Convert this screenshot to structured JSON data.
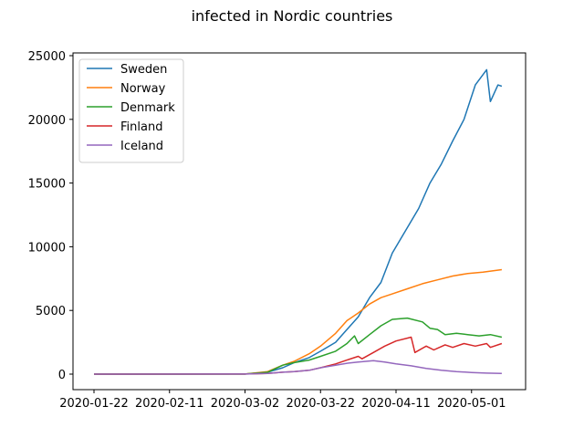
{
  "chart_data": {
    "type": "line",
    "title": "infected in  Nordic countries",
    "xlabel": "",
    "ylabel": "",
    "x_start": "2020-01-22",
    "x_end": "2020-05-10",
    "x_ticks": [
      "2020-01-22",
      "2020-02-11",
      "2020-03-02",
      "2020-03-22",
      "2020-04-11",
      "2020-05-01"
    ],
    "y_ticks": [
      0,
      5000,
      10000,
      15000,
      20000,
      25000
    ],
    "ylim": [
      -1200,
      25000
    ],
    "grid": false,
    "legend_position": "upper-left",
    "series": [
      {
        "name": "Sweden",
        "color": "#1f77b4",
        "points": [
          [
            "2020-01-22",
            0
          ],
          [
            "2020-03-02",
            10
          ],
          [
            "2020-03-08",
            150
          ],
          [
            "2020-03-12",
            500
          ],
          [
            "2020-03-15",
            900
          ],
          [
            "2020-03-19",
            1300
          ],
          [
            "2020-03-22",
            1800
          ],
          [
            "2020-03-26",
            2500
          ],
          [
            "2020-03-29",
            3500
          ],
          [
            "2020-04-01",
            4500
          ],
          [
            "2020-04-04",
            6000
          ],
          [
            "2020-04-07",
            7200
          ],
          [
            "2020-04-10",
            9500
          ],
          [
            "2020-04-13",
            11000
          ],
          [
            "2020-04-17",
            13000
          ],
          [
            "2020-04-20",
            15000
          ],
          [
            "2020-04-23",
            16500
          ],
          [
            "2020-04-26",
            18300
          ],
          [
            "2020-04-29",
            20000
          ],
          [
            "2020-05-02",
            22700
          ],
          [
            "2020-05-05",
            23900
          ],
          [
            "2020-05-06",
            21400
          ],
          [
            "2020-05-08",
            22700
          ],
          [
            "2020-05-09",
            22600
          ]
        ]
      },
      {
        "name": "Norway",
        "color": "#ff7f0e",
        "points": [
          [
            "2020-01-22",
            0
          ],
          [
            "2020-03-02",
            10
          ],
          [
            "2020-03-08",
            200
          ],
          [
            "2020-03-12",
            700
          ],
          [
            "2020-03-15",
            1000
          ],
          [
            "2020-03-19",
            1600
          ],
          [
            "2020-03-22",
            2200
          ],
          [
            "2020-03-26",
            3200
          ],
          [
            "2020-03-29",
            4200
          ],
          [
            "2020-04-01",
            4800
          ],
          [
            "2020-04-04",
            5500
          ],
          [
            "2020-04-07",
            6000
          ],
          [
            "2020-04-10",
            6300
          ],
          [
            "2020-04-14",
            6700
          ],
          [
            "2020-04-18",
            7100
          ],
          [
            "2020-04-22",
            7400
          ],
          [
            "2020-04-26",
            7700
          ],
          [
            "2020-04-30",
            7900
          ],
          [
            "2020-05-04",
            8000
          ],
          [
            "2020-05-09",
            8200
          ]
        ]
      },
      {
        "name": "Denmark",
        "color": "#2ca02c",
        "points": [
          [
            "2020-01-22",
            0
          ],
          [
            "2020-03-02",
            5
          ],
          [
            "2020-03-08",
            150
          ],
          [
            "2020-03-12",
            700
          ],
          [
            "2020-03-15",
            900
          ],
          [
            "2020-03-19",
            1100
          ],
          [
            "2020-03-22",
            1400
          ],
          [
            "2020-03-26",
            1800
          ],
          [
            "2020-03-29",
            2400
          ],
          [
            "2020-03-31",
            3000
          ],
          [
            "2020-04-01",
            2400
          ],
          [
            "2020-04-04",
            3100
          ],
          [
            "2020-04-07",
            3800
          ],
          [
            "2020-04-10",
            4300
          ],
          [
            "2020-04-14",
            4400
          ],
          [
            "2020-04-18",
            4100
          ],
          [
            "2020-04-20",
            3600
          ],
          [
            "2020-04-22",
            3500
          ],
          [
            "2020-04-24",
            3100
          ],
          [
            "2020-04-27",
            3200
          ],
          [
            "2020-04-30",
            3100
          ],
          [
            "2020-05-03",
            3000
          ],
          [
            "2020-05-06",
            3100
          ],
          [
            "2020-05-09",
            2900
          ]
        ]
      },
      {
        "name": "Finland",
        "color": "#d62728",
        "points": [
          [
            "2020-01-22",
            0
          ],
          [
            "2020-03-02",
            5
          ],
          [
            "2020-03-08",
            50
          ],
          [
            "2020-03-12",
            150
          ],
          [
            "2020-03-15",
            200
          ],
          [
            "2020-03-19",
            300
          ],
          [
            "2020-03-22",
            500
          ],
          [
            "2020-03-26",
            800
          ],
          [
            "2020-03-29",
            1100
          ],
          [
            "2020-04-01",
            1400
          ],
          [
            "2020-04-02",
            1200
          ],
          [
            "2020-04-05",
            1700
          ],
          [
            "2020-04-08",
            2200
          ],
          [
            "2020-04-11",
            2600
          ],
          [
            "2020-04-15",
            2900
          ],
          [
            "2020-04-16",
            1700
          ],
          [
            "2020-04-19",
            2200
          ],
          [
            "2020-04-21",
            1900
          ],
          [
            "2020-04-24",
            2300
          ],
          [
            "2020-04-26",
            2100
          ],
          [
            "2020-04-29",
            2400
          ],
          [
            "2020-05-02",
            2200
          ],
          [
            "2020-05-05",
            2400
          ],
          [
            "2020-05-06",
            2100
          ],
          [
            "2020-05-09",
            2400
          ]
        ]
      },
      {
        "name": "Iceland",
        "color": "#9467bd",
        "points": [
          [
            "2020-01-22",
            0
          ],
          [
            "2020-03-02",
            5
          ],
          [
            "2020-03-08",
            50
          ],
          [
            "2020-03-12",
            150
          ],
          [
            "2020-03-15",
            200
          ],
          [
            "2020-03-19",
            300
          ],
          [
            "2020-03-22",
            500
          ],
          [
            "2020-03-26",
            700
          ],
          [
            "2020-03-29",
            850
          ],
          [
            "2020-04-01",
            950
          ],
          [
            "2020-04-05",
            1050
          ],
          [
            "2020-04-08",
            950
          ],
          [
            "2020-04-11",
            800
          ],
          [
            "2020-04-15",
            650
          ],
          [
            "2020-04-19",
            450
          ],
          [
            "2020-04-23",
            300
          ],
          [
            "2020-04-27",
            200
          ],
          [
            "2020-05-01",
            130
          ],
          [
            "2020-05-05",
            80
          ],
          [
            "2020-05-09",
            50
          ]
        ]
      }
    ]
  }
}
